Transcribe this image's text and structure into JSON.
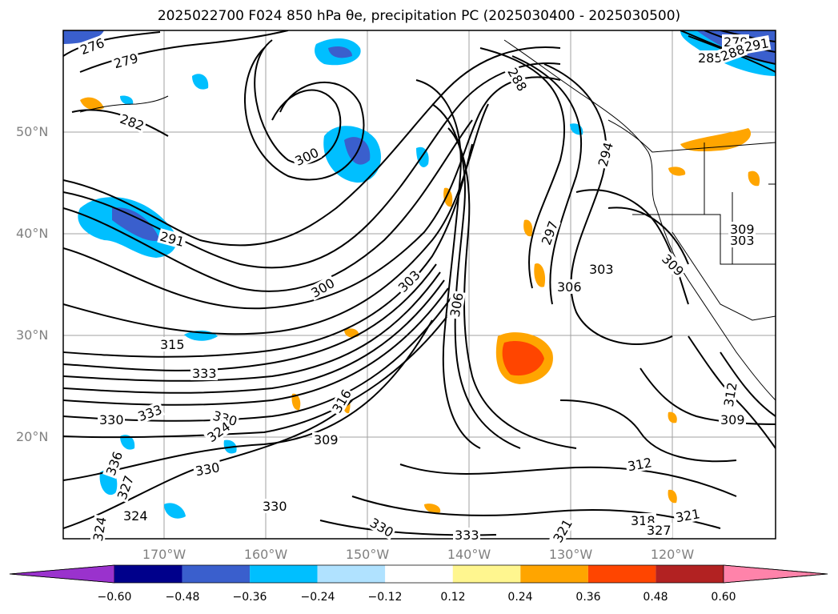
{
  "title": "2025022700 F024 850 hPa θe, precipitation PC (2025030400 - 2025030500)",
  "lat_labels": [
    "50°N",
    "40°N",
    "30°N",
    "20°N"
  ],
  "lon_labels": [
    "170°W",
    "160°W",
    "150°W",
    "140°W",
    "130°W",
    "120°W"
  ],
  "contour_labels": [
    "276",
    "279",
    "282",
    "300",
    "291",
    "300",
    "303",
    "315",
    "333",
    "330",
    "333",
    "330",
    "324",
    "330",
    "336",
    "330",
    "327",
    "324",
    "324",
    "316",
    "309",
    "306",
    "297",
    "294",
    "288",
    "303",
    "306",
    "309",
    "303",
    "309",
    "312",
    "309",
    "312",
    "318",
    "321",
    "327",
    "321",
    "330",
    "333",
    "279",
    "285",
    "288",
    "291"
  ],
  "colorbar": {
    "ticks": [
      "−0.60",
      "−0.48",
      "−0.36",
      "−0.24",
      "−0.12",
      "0.12",
      "0.24",
      "0.36",
      "0.48",
      "0.60"
    ],
    "colors": [
      "#9a32cd",
      "#00008b",
      "#3a5fcd",
      "#00bfff",
      "#b0e2ff",
      "#ffffff",
      "#fff68f",
      "#ffa500",
      "#ff4500",
      "#b22222",
      "#ff83aa"
    ]
  }
}
